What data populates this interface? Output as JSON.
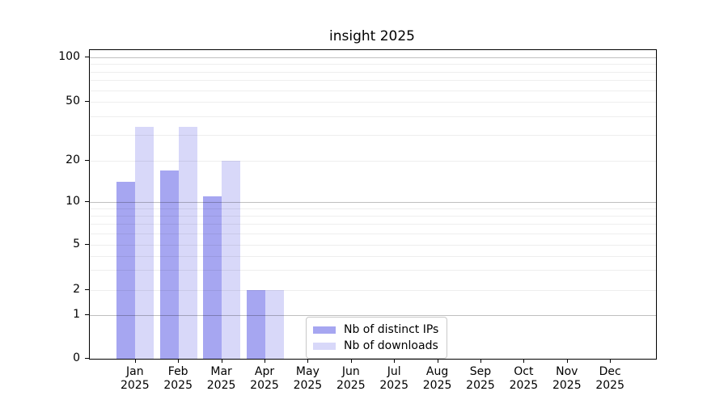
{
  "title": "insight 2025",
  "colors": {
    "distinct_ips_bar": "#a6a6f1",
    "downloads_bar": "#d8d8f9",
    "axis": "#000000",
    "legend_border": "#c9c9c9"
  },
  "legend": {
    "items": [
      {
        "label": "Nb of distinct IPs",
        "color": "#a6a6f1"
      },
      {
        "label": "Nb of downloads",
        "color": "#d8d8f9"
      }
    ]
  },
  "chart_data": {
    "type": "bar",
    "title": "insight 2025",
    "categories": [
      "Jan",
      "Feb",
      "Mar",
      "Apr",
      "May",
      "Jun",
      "Jul",
      "Aug",
      "Sep",
      "Oct",
      "Nov",
      "Dec"
    ],
    "x_year_line": "2025",
    "series": [
      {
        "name": "Nb of distinct IPs",
        "color": "#a6a6f1",
        "values": [
          14,
          17,
          11,
          2,
          0,
          0,
          0,
          0,
          0,
          0,
          0,
          0
        ]
      },
      {
        "name": "Nb of downloads",
        "color": "#d8d8f9",
        "values": [
          34,
          34,
          20,
          2,
          0,
          0,
          0,
          0,
          0,
          0,
          0,
          0
        ]
      }
    ],
    "xlabel": "",
    "ylabel": "",
    "yscale": "symlog",
    "ylim": [
      0,
      110
    ],
    "y_ticks": [
      100,
      50,
      20,
      10,
      5,
      2,
      1,
      0
    ],
    "y_major_gridlines": [
      100,
      10,
      1
    ],
    "y_minor_gridlines": [
      90,
      80,
      70,
      60,
      50,
      40,
      30,
      20,
      9,
      8,
      7,
      6,
      5,
      4,
      3,
      2
    ],
    "grid": true,
    "legend_position": "lower center"
  }
}
